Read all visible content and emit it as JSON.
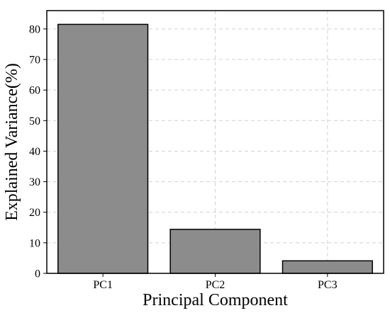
{
  "chart_data": {
    "type": "bar",
    "title": "",
    "xlabel": "Principal Component",
    "ylabel": "Explained Variance(%)",
    "categories": [
      "PC1",
      "PC2",
      "PC3"
    ],
    "values": [
      81.5,
      14.4,
      4.1
    ],
    "ylim": [
      0,
      86
    ],
    "yticks": [
      0,
      10,
      20,
      30,
      40,
      50,
      60,
      70,
      80
    ],
    "grid": true,
    "legend": "none",
    "colors": {
      "bar_fill": "#8c8c8c",
      "bar_edge": "#000000",
      "grid": "#d0d0d0"
    }
  }
}
